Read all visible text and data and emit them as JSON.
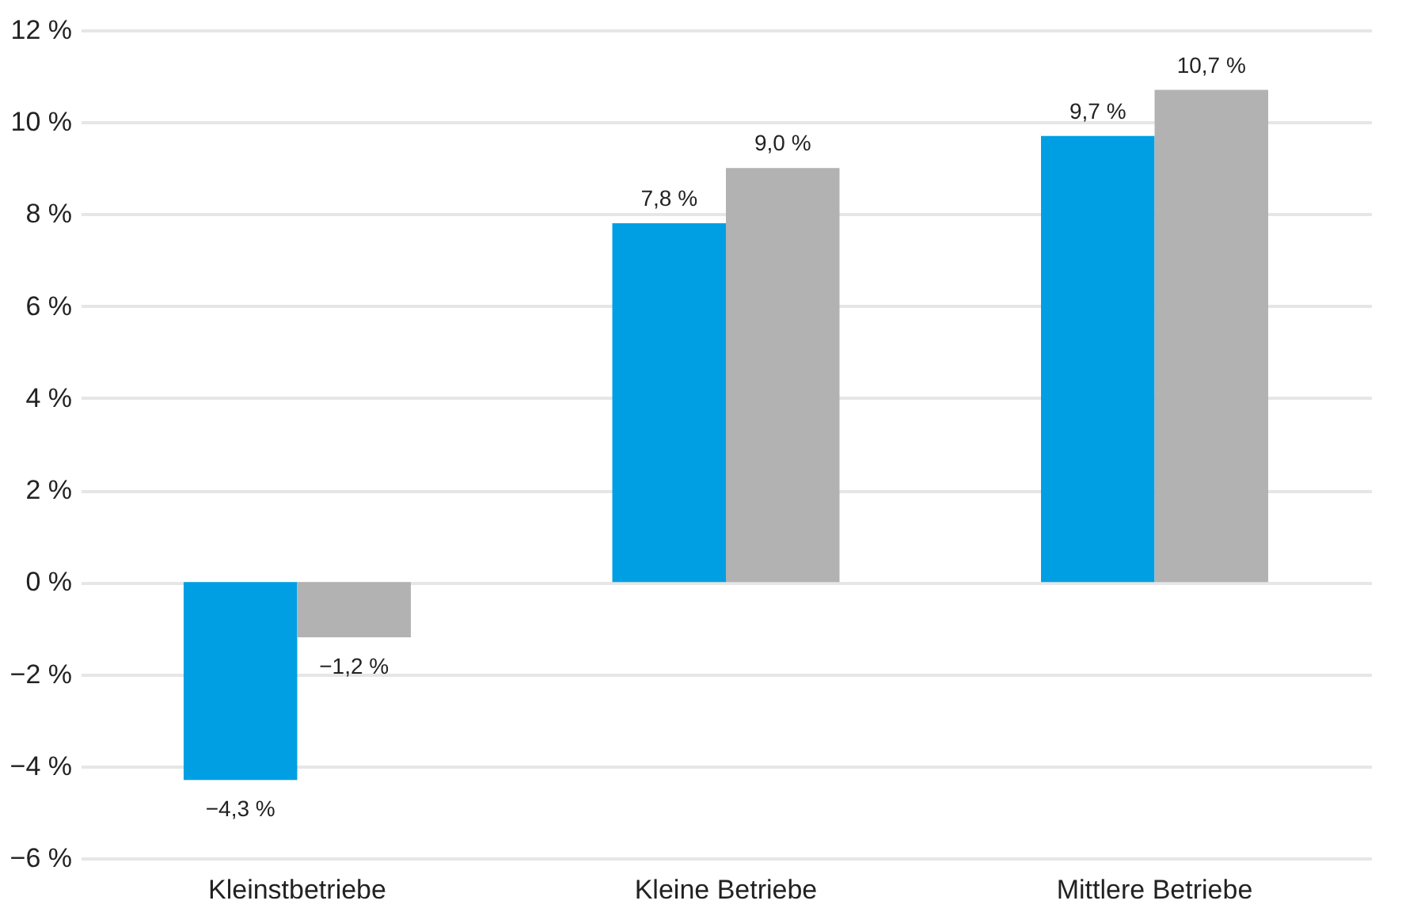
{
  "chart_data": {
    "type": "bar",
    "categories": [
      "Kleinstbetriebe",
      "Kleine Betriebe",
      "Mittlere Betriebe"
    ],
    "series": [
      {
        "color": "#009fe3",
        "values": [
          -4.3,
          7.8,
          9.7
        ],
        "value_labels": [
          "−4,3 %",
          "7,8 %",
          "9,7 %"
        ]
      },
      {
        "color": "#b2b2b2",
        "values": [
          -1.2,
          9.0,
          10.7
        ],
        "value_labels": [
          "−1,2 %",
          "9,0 %",
          "10,7 %"
        ]
      }
    ],
    "ylim": [
      -6,
      12
    ],
    "yticks": [
      {
        "value": -6,
        "label": "−6 %"
      },
      {
        "value": -4,
        "label": "−4 %"
      },
      {
        "value": -2,
        "label": "−2 %"
      },
      {
        "value": 0,
        "label": "0 %"
      },
      {
        "value": 2,
        "label": "2 %"
      },
      {
        "value": 4,
        "label": "4 %"
      },
      {
        "value": 6,
        "label": "6 %"
      },
      {
        "value": 8,
        "label": "8 %"
      },
      {
        "value": 10,
        "label": "10 %"
      },
      {
        "value": 12,
        "label": "12 %"
      }
    ],
    "grid": "y",
    "legend": false
  }
}
